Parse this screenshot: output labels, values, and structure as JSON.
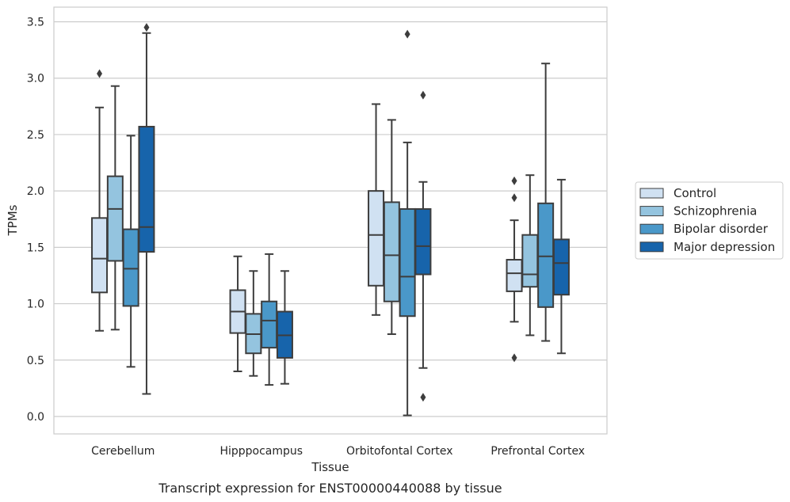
{
  "chart_data": {
    "type": "box",
    "xlabel": "Tissue",
    "ylabel": "TPMs",
    "caption": "Transcript expression for ENST00000440088 by tissue",
    "ylim": [
      -0.15,
      3.62
    ],
    "yticks": [
      "0.0",
      "0.5",
      "1.0",
      "1.5",
      "2.0",
      "2.5",
      "3.0",
      "3.5"
    ],
    "grid": "horizontal",
    "legend_position": "right",
    "categories": [
      "Cerebellum",
      "Hipppocampus",
      "Orbitofontal Cortex",
      "Prefrontal Cortex"
    ],
    "series": [
      {
        "name": "Control",
        "color": "#d0e1f2",
        "boxes": [
          {
            "whislo": 0.76,
            "q1": 1.1,
            "med": 1.4,
            "q3": 1.76,
            "whishi": 2.74,
            "fliers": [
              3.04
            ]
          },
          {
            "whislo": 0.4,
            "q1": 0.74,
            "med": 0.93,
            "q3": 1.12,
            "whishi": 1.42,
            "fliers": []
          },
          {
            "whislo": 0.9,
            "q1": 1.16,
            "med": 1.61,
            "q3": 2.0,
            "whishi": 2.77,
            "fliers": []
          },
          {
            "whislo": 0.84,
            "q1": 1.11,
            "med": 1.27,
            "q3": 1.39,
            "whishi": 1.74,
            "fliers": [
              2.09,
              1.94,
              0.52
            ]
          }
        ]
      },
      {
        "name": "Schizophrenia",
        "color": "#94c4df",
        "boxes": [
          {
            "whislo": 0.77,
            "q1": 1.38,
            "med": 1.84,
            "q3": 2.13,
            "whishi": 2.93,
            "fliers": []
          },
          {
            "whislo": 0.36,
            "q1": 0.56,
            "med": 0.73,
            "q3": 0.91,
            "whishi": 1.29,
            "fliers": []
          },
          {
            "whislo": 0.73,
            "q1": 1.02,
            "med": 1.43,
            "q3": 1.9,
            "whishi": 2.63,
            "fliers": []
          },
          {
            "whislo": 0.72,
            "q1": 1.15,
            "med": 1.26,
            "q3": 1.61,
            "whishi": 2.14,
            "fliers": []
          }
        ]
      },
      {
        "name": "Bipolar disorder",
        "color": "#4a98c9",
        "boxes": [
          {
            "whislo": 0.44,
            "q1": 0.98,
            "med": 1.31,
            "q3": 1.66,
            "whishi": 2.49,
            "fliers": []
          },
          {
            "whislo": 0.28,
            "q1": 0.61,
            "med": 0.85,
            "q3": 1.02,
            "whishi": 1.44,
            "fliers": []
          },
          {
            "whislo": 0.01,
            "q1": 0.89,
            "med": 1.24,
            "q3": 1.84,
            "whishi": 2.43,
            "fliers": [
              3.39
            ]
          },
          {
            "whislo": 0.67,
            "q1": 0.97,
            "med": 1.42,
            "q3": 1.89,
            "whishi": 3.13,
            "fliers": []
          }
        ]
      },
      {
        "name": "Major depression",
        "color": "#1764ab",
        "boxes": [
          {
            "whislo": 0.2,
            "q1": 1.46,
            "med": 1.68,
            "q3": 2.57,
            "whishi": 3.4,
            "fliers": [
              3.45
            ]
          },
          {
            "whislo": 0.29,
            "q1": 0.52,
            "med": 0.72,
            "q3": 0.93,
            "whishi": 1.29,
            "fliers": []
          },
          {
            "whislo": 0.43,
            "q1": 1.26,
            "med": 1.51,
            "q3": 1.84,
            "whishi": 2.08,
            "fliers": [
              2.85,
              0.17
            ]
          },
          {
            "whislo": 0.56,
            "q1": 1.08,
            "med": 1.36,
            "q3": 1.57,
            "whishi": 2.1,
            "fliers": []
          }
        ]
      }
    ]
  }
}
